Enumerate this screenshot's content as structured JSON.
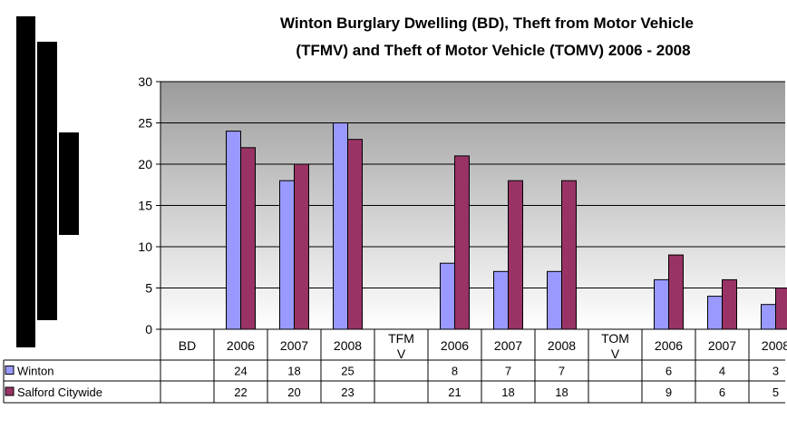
{
  "chart_data": {
    "type": "bar",
    "title_lines": [
      "Winton Burglary Dwelling (BD), Theft from Motor Vehicle",
      "(TFMV) and Theft of Motor Vehicle (TOMV) 2006 - 2008"
    ],
    "categories": [
      "BD",
      "2006",
      "2007",
      "2008",
      "TFM V",
      "2006",
      "2007",
      "2008",
      "TOM V",
      "2006",
      "2007",
      "2008"
    ],
    "category_lines": [
      [
        "BD"
      ],
      [
        "2006"
      ],
      [
        "2007"
      ],
      [
        "2008"
      ],
      [
        "TFM",
        "V"
      ],
      [
        "2006"
      ],
      [
        "2007"
      ],
      [
        "2008"
      ],
      [
        "TOM",
        "V"
      ],
      [
        "2006"
      ],
      [
        "2007"
      ],
      [
        "2008"
      ]
    ],
    "series": [
      {
        "name": "Winton",
        "color": "#9999ff",
        "values": [
          null,
          24,
          18,
          25,
          null,
          8,
          7,
          7,
          null,
          6,
          4,
          3
        ]
      },
      {
        "name": "Salford Citywide",
        "color": "#993366",
        "values": [
          null,
          22,
          20,
          23,
          null,
          21,
          18,
          18,
          null,
          9,
          6,
          5
        ]
      }
    ],
    "ylim": [
      0,
      30
    ],
    "yticks": [
      0,
      5,
      10,
      15,
      20,
      25,
      30
    ],
    "grid": true,
    "data_table": true,
    "plot_background": "gradient grey",
    "decorations": [
      "black vertical bars at left"
    ]
  }
}
